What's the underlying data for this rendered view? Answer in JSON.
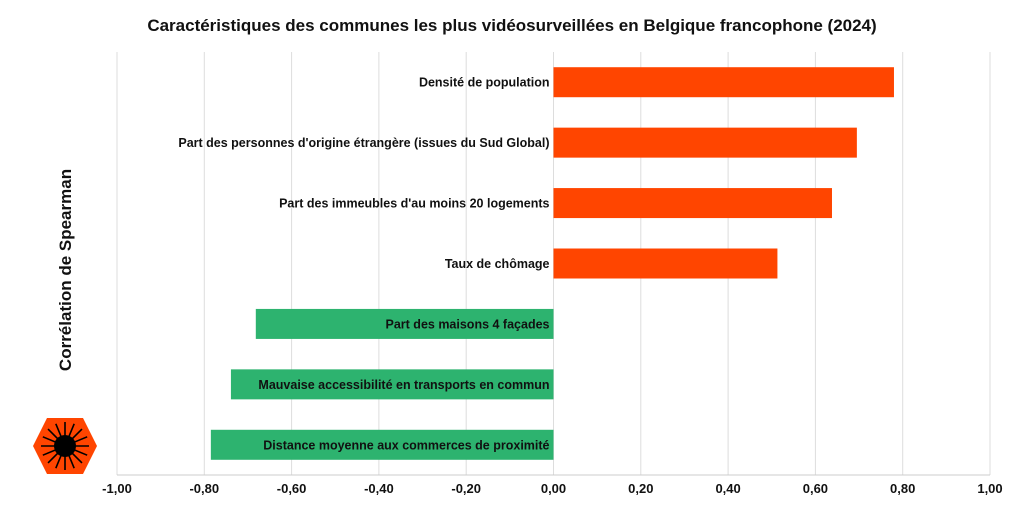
{
  "chart_data": {
    "type": "bar",
    "orientation": "horizontal",
    "title": "Caractéristiques des communes les plus vidéosurveillées en Belgique francophone (2024)",
    "xlabel": "",
    "ylabel": "Corrélation de Spearman",
    "xlim": [
      -1,
      1
    ],
    "xticks": [
      "-1,00",
      "-0,80",
      "-0,60",
      "-0,40",
      "-0,20",
      "0,00",
      "0,20",
      "0,40",
      "0,60",
      "0,80",
      "1,00"
    ],
    "grid": true,
    "categories": [
      "Densité de population",
      "Part des personnes d'origine étrangère (issues du Sud Global)",
      "Part des immeubles d'au moins 20 logements",
      "Taux de chômage",
      "Part des maisons 4 façades",
      "Mauvaise accessibilité en transports en commun",
      "Distance moyenne aux commerces de proximité"
    ],
    "values": [
      0.78,
      0.695,
      0.638,
      0.513,
      -0.682,
      -0.739,
      -0.785
    ],
    "colors": {
      "positive": "#ff4500",
      "negative": "#2db36f",
      "grid": "#dddddd",
      "logo": "#ff4500"
    }
  }
}
